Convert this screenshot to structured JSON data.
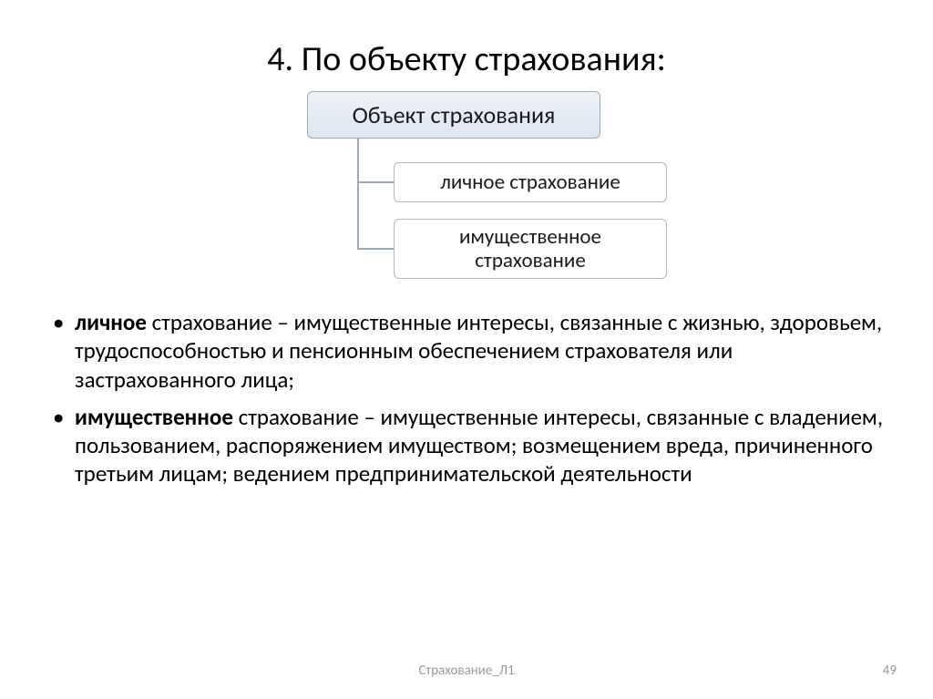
{
  "slide": {
    "title": "4. По объекту страхования:",
    "footer_center": "Страхование_Л1",
    "page_number": "49"
  },
  "diagram": {
    "type": "tree",
    "root": {
      "label": "Объект страхования",
      "bg_gradient_top": "#eef2f8",
      "bg_gradient_bottom": "#dde6f1",
      "border_color": "#9aaac0",
      "font_size_pt": 20,
      "text_color": "#1a1a1a"
    },
    "children": [
      {
        "label": "личное страхование",
        "bg": "#ffffff",
        "border_color": "#b0b9c6",
        "font_size_pt": 17,
        "text_color": "#1a1a1a"
      },
      {
        "label": "имущественное страхование",
        "bg": "#ffffff",
        "border_color": "#b0b9c6",
        "font_size_pt": 17,
        "text_color": "#1a1a1a"
      }
    ],
    "connector_color": "#9aaac0",
    "layout": "elbow-left"
  },
  "bullets": [
    {
      "lead": "личное",
      "rest": " страхование – имущественные интересы, связанные с жизнью, здоровьем, трудоспособностью и пенсионным обеспечением страхователя или застрахованного лица;"
    },
    {
      "lead": "имущественное",
      "rest": " страхование – имущественные интересы, связанные с владением, пользованием, распоряжением имуществом; возмещением вреда, причиненного третьим лицам; ведением предпринимательской деятельности"
    }
  ],
  "style": {
    "background_color": "#ffffff",
    "title_font_size_pt": 28,
    "body_font_size_pt": 19,
    "footer_color": "#9a9a9a",
    "footer_font_size_pt": 11,
    "bullet_color": "#000000",
    "font_family": "Calibri"
  }
}
